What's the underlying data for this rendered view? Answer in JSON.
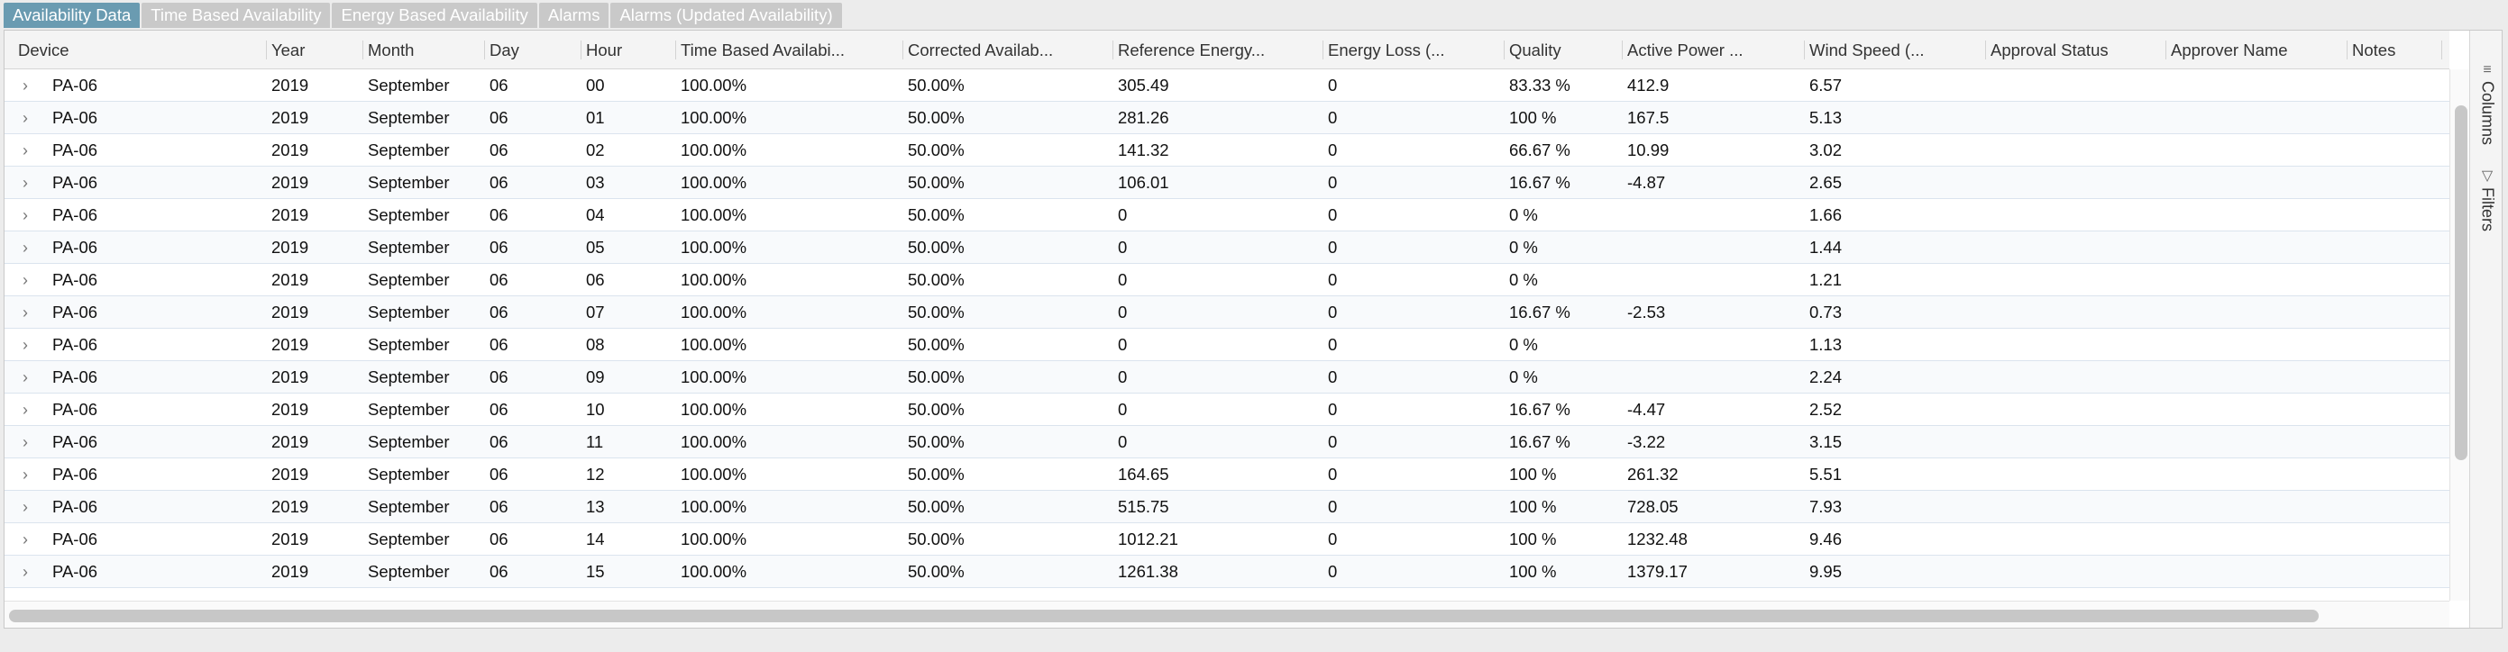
{
  "tabs": [
    {
      "label": "Availability Data",
      "active": true
    },
    {
      "label": "Time Based Availability",
      "active": false
    },
    {
      "label": "Energy Based Availability",
      "active": false
    },
    {
      "label": "Alarms",
      "active": false
    },
    {
      "label": "Alarms (Updated Availability)",
      "active": false
    }
  ],
  "columns": [
    "Device",
    "Year",
    "Month",
    "Day",
    "Hour",
    "Time Based Availabi...",
    "Corrected Availab...",
    "Reference Energy...",
    "Energy Loss (...",
    "Quality",
    "Active Power ...",
    "Wind Speed (...",
    "Approval Status",
    "Approver Name",
    "Notes"
  ],
  "rows": [
    [
      "PA-06",
      "2019",
      "September",
      "06",
      "00",
      "100.00%",
      "50.00%",
      "305.49",
      "0",
      "83.33 %",
      "412.9",
      "6.57",
      "",
      "",
      ""
    ],
    [
      "PA-06",
      "2019",
      "September",
      "06",
      "01",
      "100.00%",
      "50.00%",
      "281.26",
      "0",
      "100 %",
      "167.5",
      "5.13",
      "",
      "",
      ""
    ],
    [
      "PA-06",
      "2019",
      "September",
      "06",
      "02",
      "100.00%",
      "50.00%",
      "141.32",
      "0",
      "66.67 %",
      "10.99",
      "3.02",
      "",
      "",
      ""
    ],
    [
      "PA-06",
      "2019",
      "September",
      "06",
      "03",
      "100.00%",
      "50.00%",
      "106.01",
      "0",
      "16.67 %",
      "-4.87",
      "2.65",
      "",
      "",
      ""
    ],
    [
      "PA-06",
      "2019",
      "September",
      "06",
      "04",
      "100.00%",
      "50.00%",
      "0",
      "0",
      "0 %",
      "",
      "1.66",
      "",
      "",
      ""
    ],
    [
      "PA-06",
      "2019",
      "September",
      "06",
      "05",
      "100.00%",
      "50.00%",
      "0",
      "0",
      "0 %",
      "",
      "1.44",
      "",
      "",
      ""
    ],
    [
      "PA-06",
      "2019",
      "September",
      "06",
      "06",
      "100.00%",
      "50.00%",
      "0",
      "0",
      "0 %",
      "",
      "1.21",
      "",
      "",
      ""
    ],
    [
      "PA-06",
      "2019",
      "September",
      "06",
      "07",
      "100.00%",
      "50.00%",
      "0",
      "0",
      "16.67 %",
      "-2.53",
      "0.73",
      "",
      "",
      ""
    ],
    [
      "PA-06",
      "2019",
      "September",
      "06",
      "08",
      "100.00%",
      "50.00%",
      "0",
      "0",
      "0 %",
      "",
      "1.13",
      "",
      "",
      ""
    ],
    [
      "PA-06",
      "2019",
      "September",
      "06",
      "09",
      "100.00%",
      "50.00%",
      "0",
      "0",
      "0 %",
      "",
      "2.24",
      "",
      "",
      ""
    ],
    [
      "PA-06",
      "2019",
      "September",
      "06",
      "10",
      "100.00%",
      "50.00%",
      "0",
      "0",
      "16.67 %",
      "-4.47",
      "2.52",
      "",
      "",
      ""
    ],
    [
      "PA-06",
      "2019",
      "September",
      "06",
      "11",
      "100.00%",
      "50.00%",
      "0",
      "0",
      "16.67 %",
      "-3.22",
      "3.15",
      "",
      "",
      ""
    ],
    [
      "PA-06",
      "2019",
      "September",
      "06",
      "12",
      "100.00%",
      "50.00%",
      "164.65",
      "0",
      "100 %",
      "261.32",
      "5.51",
      "",
      "",
      ""
    ],
    [
      "PA-06",
      "2019",
      "September",
      "06",
      "13",
      "100.00%",
      "50.00%",
      "515.75",
      "0",
      "100 %",
      "728.05",
      "7.93",
      "",
      "",
      ""
    ],
    [
      "PA-06",
      "2019",
      "September",
      "06",
      "14",
      "100.00%",
      "50.00%",
      "1012.21",
      "0",
      "100 %",
      "1232.48",
      "9.46",
      "",
      "",
      ""
    ],
    [
      "PA-06",
      "2019",
      "September",
      "06",
      "15",
      "100.00%",
      "50.00%",
      "1261.38",
      "0",
      "100 %",
      "1379.17",
      "9.95",
      "",
      "",
      ""
    ]
  ],
  "side_panel": {
    "columns_label": "Columns",
    "columns_icon": "columns-icon",
    "filters_label": "Filters",
    "filters_icon": "filter-icon"
  },
  "colors": {
    "active_tab": "#6a9bb1",
    "inactive_tab": "#c9c9c9"
  }
}
